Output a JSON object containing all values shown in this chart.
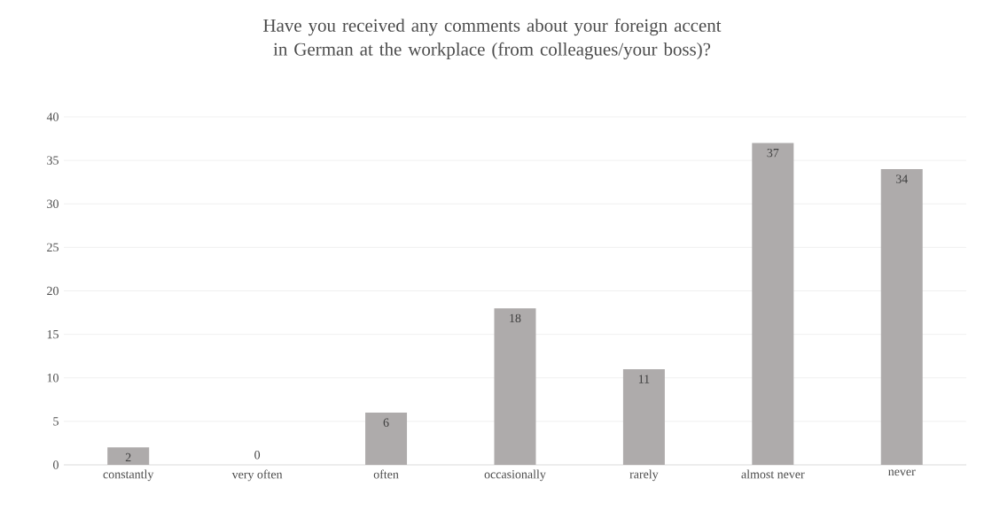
{
  "chart_data": {
    "type": "bar",
    "title": "Have you received any comments about your foreign accent in German at the workplace (from colleagues/your boss)?",
    "categories": [
      "constantly",
      "very often",
      "often",
      "occasionally",
      "rarely",
      "almost never",
      "never"
    ],
    "values": [
      2,
      0,
      6,
      18,
      11,
      37,
      34
    ],
    "color": "#aeabab",
    "ylim": [
      0,
      40
    ],
    "yticks": [
      0,
      5,
      10,
      15,
      20,
      25,
      30,
      35,
      40
    ],
    "grid": "y",
    "data_labels": true
  }
}
